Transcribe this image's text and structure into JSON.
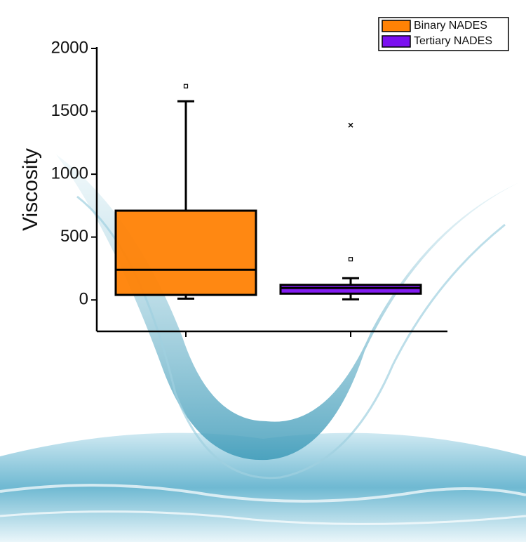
{
  "chart_data": {
    "type": "box",
    "y_label": "Viscosity",
    "categories": [
      null,
      null
    ],
    "ylim": [
      -250,
      2000
    ],
    "yticks": [
      0,
      500,
      1000,
      1500,
      2000
    ],
    "legend": "top-right",
    "series": [
      {
        "name": "Binary NADES",
        "color": "#ff8205",
        "q1": 40,
        "median": 240,
        "q3": 710,
        "whisker_low": 10,
        "whisker_high": 1580,
        "markers": [
          {
            "value": 1700,
            "shape": "square"
          }
        ]
      },
      {
        "name": "Tertiary NADES",
        "color": "#7b10f0",
        "q1": 50,
        "median": 95,
        "q3": 120,
        "whisker_low": 5,
        "whisker_high": 173,
        "markers": [
          {
            "value": 324,
            "shape": "square"
          },
          {
            "value": 1390,
            "shape": "cross"
          }
        ]
      }
    ]
  }
}
